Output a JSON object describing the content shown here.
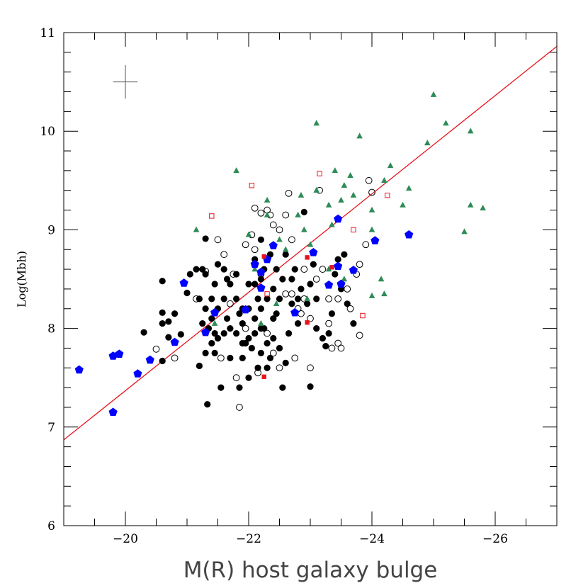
{
  "chart_data": {
    "type": "scatter",
    "title": "",
    "xlabel": "M(R) host galaxy bulge",
    "ylabel": "Log(Mbh)",
    "xlim": [
      -19,
      -27
    ],
    "ylim": [
      6,
      11
    ],
    "x_major_ticks": [
      -20,
      -22,
      -24,
      -26
    ],
    "x_minor_step": 0.5,
    "y_major_ticks": [
      6,
      7,
      8,
      9,
      10,
      11
    ],
    "y_minor_step": 0.2,
    "x_tick_labels": [
      "−20",
      "−22",
      "−24",
      "−26"
    ],
    "y_tick_labels": [
      "6",
      "7",
      "8",
      "9",
      "10",
      "11"
    ],
    "grid": false,
    "legend": "none",
    "fit_line": {
      "x": [
        -19,
        -27
      ],
      "y": [
        6.87,
        10.86
      ],
      "color": "#e8141c"
    },
    "error_bar": {
      "x": -20.0,
      "y": 10.5,
      "dx": 0.2,
      "dy": 0.17,
      "color": "#555555"
    },
    "series": [
      {
        "marker": "filled-circle",
        "color": "#000000",
        "points": [
          [
            -20.6,
            8.48
          ],
          [
            -20.8,
            8.15
          ],
          [
            -20.6,
            8.16
          ],
          [
            -20.7,
            8.07
          ],
          [
            -20.6,
            8.05
          ],
          [
            -20.3,
            7.96
          ],
          [
            -20.7,
            7.91
          ],
          [
            -20.6,
            7.67
          ],
          [
            -20.9,
            7.94
          ],
          [
            -21.0,
            8.36
          ],
          [
            -21.05,
            8.55
          ],
          [
            -21.15,
            8.6
          ],
          [
            -21.2,
            8.3
          ],
          [
            -21.25,
            8.6
          ],
          [
            -21.3,
            8.55
          ],
          [
            -21.3,
            8.2
          ],
          [
            -21.25,
            8.05
          ],
          [
            -21.35,
            8.0
          ],
          [
            -21.2,
            7.62
          ],
          [
            -21.3,
            7.75
          ],
          [
            -21.4,
            7.85
          ],
          [
            -21.3,
            8.91
          ],
          [
            -21.5,
            8.65
          ],
          [
            -21.45,
            8.45
          ],
          [
            -21.4,
            8.3
          ],
          [
            -21.5,
            8.2
          ],
          [
            -21.4,
            8.1
          ],
          [
            -21.45,
            7.95
          ],
          [
            -21.5,
            7.9
          ],
          [
            -21.45,
            7.75
          ],
          [
            -21.55,
            7.4
          ],
          [
            -21.33,
            7.23
          ],
          [
            -21.6,
            8.6
          ],
          [
            -21.65,
            8.5
          ],
          [
            -21.6,
            8.3
          ],
          [
            -21.7,
            8.45
          ],
          [
            -21.65,
            8.1
          ],
          [
            -21.7,
            8.0
          ],
          [
            -21.6,
            7.95
          ],
          [
            -21.7,
            7.7
          ],
          [
            -21.8,
            8.55
          ],
          [
            -21.8,
            8.3
          ],
          [
            -21.85,
            8.15
          ],
          [
            -21.8,
            7.95
          ],
          [
            -21.9,
            8.2
          ],
          [
            -21.9,
            8.05
          ],
          [
            -21.9,
            7.85
          ],
          [
            -21.9,
            7.7
          ],
          [
            -21.85,
            7.4
          ],
          [
            -22.0,
            8.45
          ],
          [
            -22.0,
            8.2
          ],
          [
            -22.0,
            7.9
          ],
          [
            -22.0,
            7.5
          ],
          [
            -21.95,
            7.85
          ],
          [
            -22.05,
            7.8
          ],
          [
            -22.1,
            8.7
          ],
          [
            -22.1,
            8.45
          ],
          [
            -22.15,
            8.3
          ],
          [
            -22.1,
            8.1
          ],
          [
            -22.1,
            7.95
          ],
          [
            -22.15,
            7.6
          ],
          [
            -22.2,
            8.9
          ],
          [
            -22.2,
            8.5
          ],
          [
            -22.2,
            8.2
          ],
          [
            -22.2,
            8.0
          ],
          [
            -22.2,
            7.75
          ],
          [
            -22.25,
            8.6
          ],
          [
            -22.3,
            8.3
          ],
          [
            -22.25,
            8.0
          ],
          [
            -22.3,
            7.85
          ],
          [
            -22.35,
            7.7
          ],
          [
            -22.3,
            7.6
          ],
          [
            -22.35,
            8.75
          ],
          [
            -22.4,
            8.4
          ],
          [
            -22.4,
            8.1
          ],
          [
            -22.4,
            7.9
          ],
          [
            -22.45,
            8.6
          ],
          [
            -22.5,
            8.3
          ],
          [
            -22.45,
            8.15
          ],
          [
            -22.5,
            7.8
          ],
          [
            -22.55,
            8.5
          ],
          [
            -22.6,
            8.75
          ],
          [
            -22.55,
            7.4
          ],
          [
            -22.65,
            7.95
          ],
          [
            -22.6,
            7.65
          ],
          [
            -22.7,
            8.25
          ],
          [
            -22.7,
            8.5
          ],
          [
            -22.75,
            8.6
          ],
          [
            -22.8,
            8.3
          ],
          [
            -22.8,
            8.05
          ],
          [
            -22.85,
            8.4
          ],
          [
            -22.9,
            9.18
          ],
          [
            -22.95,
            8.25
          ],
          [
            -23.0,
            8.45
          ],
          [
            -23.05,
            8.65
          ],
          [
            -23.1,
            8.0
          ],
          [
            -23.2,
            7.9
          ],
          [
            -23.3,
            7.95
          ],
          [
            -23.35,
            8.15
          ],
          [
            -23.4,
            8.55
          ],
          [
            -23.45,
            8.7
          ],
          [
            -23.5,
            8.4
          ],
          [
            -23.6,
            8.25
          ],
          [
            -23.7,
            8.05
          ],
          [
            -23.0,
            7.41
          ],
          [
            -23.25,
            7.82
          ],
          [
            -23.1,
            8.3
          ],
          [
            -23.55,
            8.75
          ]
        ]
      },
      {
        "marker": "open-circle",
        "color": "#000000",
        "points": [
          [
            -20.5,
            7.79
          ],
          [
            -20.8,
            7.7
          ],
          [
            -21.15,
            8.3
          ],
          [
            -21.3,
            8.58
          ],
          [
            -21.5,
            8.9
          ],
          [
            -21.6,
            8.75
          ],
          [
            -21.75,
            8.55
          ],
          [
            -21.7,
            8.25
          ],
          [
            -21.8,
            7.5
          ],
          [
            -21.85,
            7.2
          ],
          [
            -21.95,
            8.85
          ],
          [
            -22.05,
            8.95
          ],
          [
            -22.1,
            8.8
          ],
          [
            -22.1,
            9.22
          ],
          [
            -22.2,
            9.17
          ],
          [
            -22.2,
            8.55
          ],
          [
            -22.3,
            9.2
          ],
          [
            -22.35,
            9.15
          ],
          [
            -22.4,
            9.05
          ],
          [
            -22.3,
            7.95
          ],
          [
            -22.4,
            7.75
          ],
          [
            -22.5,
            7.6
          ],
          [
            -22.5,
            9.0
          ],
          [
            -22.6,
            9.15
          ],
          [
            -22.65,
            9.37
          ],
          [
            -22.7,
            8.9
          ],
          [
            -22.7,
            8.35
          ],
          [
            -22.8,
            8.2
          ],
          [
            -22.75,
            7.7
          ],
          [
            -22.9,
            8.6
          ],
          [
            -22.9,
            8.3
          ],
          [
            -23.0,
            8.1
          ],
          [
            -23.0,
            7.6
          ],
          [
            -23.1,
            8.5
          ],
          [
            -23.2,
            8.6
          ],
          [
            -23.15,
            9.4
          ],
          [
            -23.3,
            8.3
          ],
          [
            -23.3,
            8.05
          ],
          [
            -23.35,
            7.8
          ],
          [
            -23.45,
            7.85
          ],
          [
            -23.5,
            7.8
          ],
          [
            -23.6,
            8.4
          ],
          [
            -23.65,
            8.2
          ],
          [
            -23.75,
            8.55
          ],
          [
            -23.8,
            7.93
          ],
          [
            -23.9,
            8.85
          ],
          [
            -23.95,
            9.5
          ],
          [
            -24.0,
            9.38
          ],
          [
            -23.8,
            8.65
          ],
          [
            -22.15,
            7.55
          ],
          [
            -21.95,
            8.0
          ],
          [
            -21.55,
            7.7
          ],
          [
            -22.6,
            8.35
          ],
          [
            -22.85,
            8.15
          ],
          [
            -23.45,
            8.3
          ]
        ]
      },
      {
        "marker": "filled-triangle",
        "color": "#2e8b57",
        "points": [
          [
            -21.15,
            9.0
          ],
          [
            -21.8,
            9.6
          ],
          [
            -22.0,
            8.95
          ],
          [
            -22.1,
            8.6
          ],
          [
            -22.3,
            9.3
          ],
          [
            -22.3,
            9.15
          ],
          [
            -22.5,
            8.9
          ],
          [
            -22.6,
            8.8
          ],
          [
            -22.8,
            9.15
          ],
          [
            -22.85,
            9.35
          ],
          [
            -22.9,
            9.0
          ],
          [
            -23.0,
            8.85
          ],
          [
            -23.1,
            10.08
          ],
          [
            -23.1,
            9.4
          ],
          [
            -23.3,
            9.25
          ],
          [
            -23.35,
            9.05
          ],
          [
            -23.4,
            9.6
          ],
          [
            -23.5,
            9.3
          ],
          [
            -23.55,
            9.45
          ],
          [
            -23.65,
            9.55
          ],
          [
            -23.7,
            9.35
          ],
          [
            -23.8,
            9.95
          ],
          [
            -24.0,
            9.2
          ],
          [
            -24.0,
            9.0
          ],
          [
            -24.0,
            8.33
          ],
          [
            -24.15,
            8.5
          ],
          [
            -24.2,
            8.35
          ],
          [
            -24.2,
            9.5
          ],
          [
            -24.3,
            9.65
          ],
          [
            -24.5,
            9.25
          ],
          [
            -24.6,
            9.42
          ],
          [
            -24.9,
            9.88
          ],
          [
            -25.0,
            10.37
          ],
          [
            -25.2,
            10.08
          ],
          [
            -25.5,
            8.98
          ],
          [
            -25.6,
            10.0
          ],
          [
            -25.6,
            9.25
          ],
          [
            -25.8,
            9.22
          ],
          [
            -23.3,
            8.6
          ],
          [
            -23.55,
            8.5
          ],
          [
            -22.95,
            8.3
          ],
          [
            -22.45,
            8.25
          ],
          [
            -21.45,
            8.05
          ],
          [
            -22.2,
            8.05
          ]
        ]
      },
      {
        "marker": "filled-pentagon",
        "color": "#0000ff",
        "points": [
          [
            -19.25,
            7.58
          ],
          [
            -19.8,
            7.72
          ],
          [
            -19.9,
            7.74
          ],
          [
            -19.8,
            7.15
          ],
          [
            -20.2,
            7.54
          ],
          [
            -20.4,
            7.68
          ],
          [
            -20.8,
            7.86
          ],
          [
            -20.95,
            8.46
          ],
          [
            -21.3,
            7.96
          ],
          [
            -21.45,
            8.16
          ],
          [
            -21.95,
            8.19
          ],
          [
            -22.1,
            8.65
          ],
          [
            -22.2,
            8.41
          ],
          [
            -22.2,
            8.57
          ],
          [
            -22.4,
            8.84
          ],
          [
            -22.75,
            8.16
          ],
          [
            -23.05,
            8.77
          ],
          [
            -23.3,
            8.44
          ],
          [
            -23.45,
            9.11
          ],
          [
            -23.45,
            8.63
          ],
          [
            -23.5,
            8.45
          ],
          [
            -23.7,
            8.59
          ],
          [
            -24.05,
            8.89
          ],
          [
            -24.6,
            8.95
          ],
          [
            -22.3,
            8.7
          ]
        ]
      },
      {
        "marker": "filled-square",
        "color": "#e8141c",
        "points": [
          [
            -22.25,
            8.73
          ],
          [
            -22.25,
            7.51
          ],
          [
            -22.95,
            8.72
          ],
          [
            -22.95,
            8.06
          ],
          [
            -23.35,
            8.62
          ]
        ]
      },
      {
        "marker": "open-square",
        "color": "#e8141c",
        "points": [
          [
            -21.4,
            9.14
          ],
          [
            -22.05,
            9.45
          ],
          [
            -23.15,
            9.57
          ],
          [
            -23.7,
            9.0
          ],
          [
            -23.85,
            8.13
          ],
          [
            -24.25,
            9.35
          ],
          [
            -22.3,
            8.35
          ]
        ]
      }
    ]
  }
}
